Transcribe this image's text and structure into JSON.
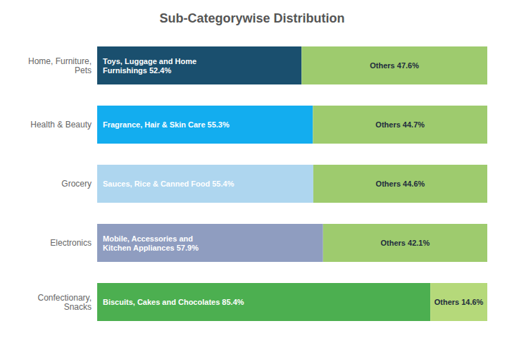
{
  "chart_data": {
    "type": "bar",
    "orientation": "horizontal",
    "stacked": true,
    "title": "Sub-Categorywise Distribution",
    "categories": [
      "Home, Furniture,\nPets",
      "Health & Beauty",
      "Grocery",
      "Electronics",
      "Confectionary,\nSnacks"
    ],
    "series": [
      {
        "values": [
          52.4,
          55.3,
          55.4,
          57.9,
          85.4
        ],
        "value_labels": [
          "Toys, Luggage and Home\nFurnishings 52.4%",
          "Fragrance, Hair & Skin Care 55.3%",
          "Sauces, Rice & Canned Food 55.4%",
          "Mobile, Accessories and\nKitchen Appliances 57.9%",
          "Biscuits, Cakes and Chocolates 85.4%"
        ],
        "colors": [
          "#1a4f6e",
          "#13adef",
          "#aed6ef",
          "#8f9dc0",
          "#4caf50"
        ]
      },
      {
        "values": [
          47.6,
          44.7,
          44.6,
          42.1,
          14.6
        ],
        "value_labels": [
          "Others 47.6%",
          "Others 44.7%",
          "Others 44.6%",
          "Others 42.1%",
          "Others 14.6%"
        ],
        "colors": [
          "#9ecb6e",
          "#9ecb6e",
          "#9ecb6e",
          "#9ecb6e",
          "#b5d97a"
        ]
      }
    ],
    "xlim": [
      0,
      100
    ],
    "grid": false,
    "tick_labels": "y",
    "data_labels": true
  }
}
